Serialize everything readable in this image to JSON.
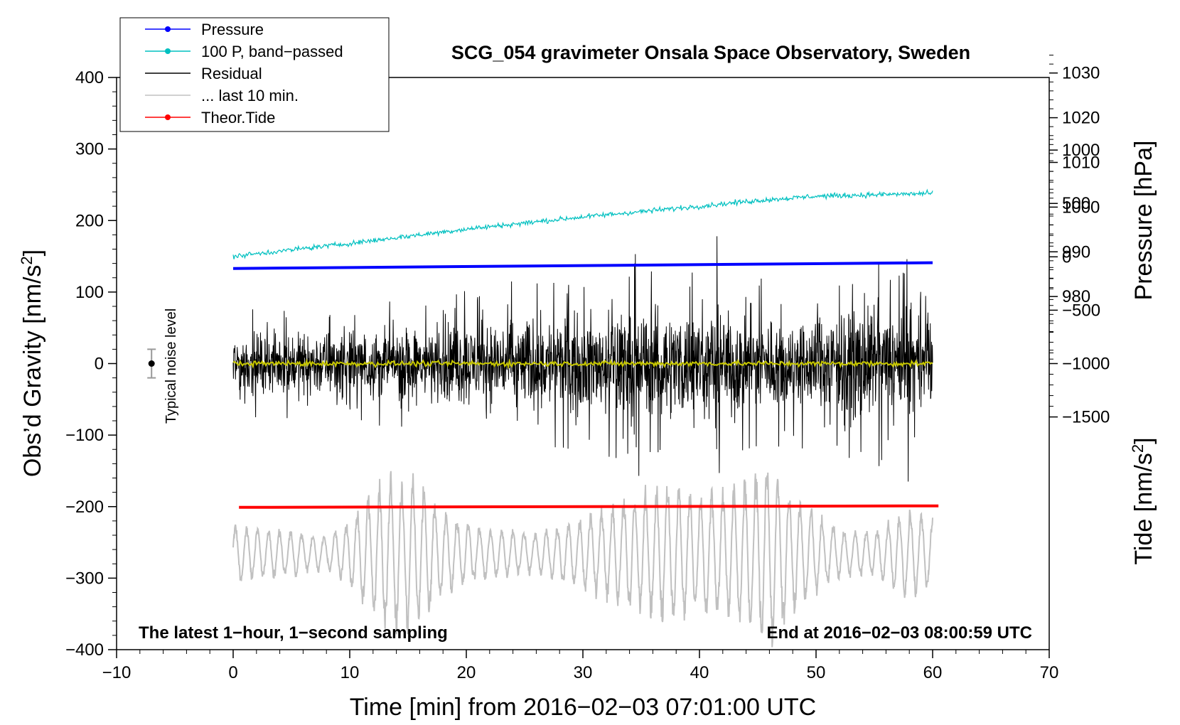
{
  "chart_data": {
    "type": "line",
    "title": "SCG_054 gravimeter Onsala Space Observatory, Sweden",
    "xlabel": "Time [min] from 2016−02−03 07:01:00 UTC",
    "ylabel_left_prefix": "Obs’d Gravity [nm/s",
    "ylabel_left_sup": "2",
    "ylabel_left_suffix": "]",
    "ylabel_right_pressure": "Pressure [hPa]",
    "ylabel_right_tide_prefix": "Tide [nm/s",
    "ylabel_right_tide_sup": "2",
    "ylabel_right_tide_suffix": "]",
    "xlim": [
      -10,
      70
    ],
    "ylim": [
      -400,
      400
    ],
    "x_ticks": [
      -10,
      0,
      10,
      20,
      30,
      40,
      50,
      60,
      70
    ],
    "x_tick_labels": [
      "−10",
      "0",
      "10",
      "20",
      "30",
      "40",
      "50",
      "60",
      "70"
    ],
    "y_ticks": [
      -400,
      -300,
      -200,
      -100,
      0,
      100,
      200,
      300,
      400
    ],
    "y_tick_labels": [
      "−400",
      "−300",
      "−200",
      "−100",
      "0",
      "100",
      "200",
      "300",
      "400"
    ],
    "pressure_axis": {
      "ticks": [
        980,
        990,
        1000,
        1010,
        1020,
        1030
      ],
      "tick_labels": [
        "980",
        "990",
        "1000",
        "1010",
        "1020",
        "1030"
      ],
      "value_at_y_zero": 965,
      "hpa_per_gravity_unit": 0.16
    },
    "tide_axis": {
      "ticks": [
        -1500,
        -1000,
        -500,
        0,
        500,
        1000
      ],
      "tick_labels": [
        "−1500",
        "−1000",
        "−500",
        "0",
        "500",
        "1000"
      ],
      "value_at_y_zero": -1000,
      "nm_per_gravity_unit": 6.7
    },
    "legend": [
      {
        "label": "Pressure",
        "color": "#0000ff",
        "marker": true
      },
      {
        "label": "100 P, band−passed",
        "color": "#00c0c0",
        "marker": true
      },
      {
        "label": "Residual",
        "color": "#000000",
        "marker": false
      },
      {
        "label": "... last 10 min.",
        "color": "#c0c0c0",
        "marker": false
      },
      {
        "label": "Theor.Tide",
        "color": "#ff0000",
        "marker": true
      }
    ],
    "annotations": {
      "bottom_left": "The latest 1−hour, 1−second sampling",
      "bottom_right": "End at 2016−02−03 08:00:59 UTC",
      "noise_label": "Typical noise level"
    },
    "noise_bar": {
      "x": -7,
      "center": 0,
      "half_range": 20
    },
    "series": [
      {
        "name": "Pressure",
        "color": "#0000ff",
        "kind": "linear",
        "x_range": [
          0,
          60
        ],
        "y_start": 133,
        "y_end": 141
      },
      {
        "name": "100 P, band−passed",
        "color": "#00c0c0",
        "kind": "trend_noise",
        "x": [
          0,
          10,
          20,
          30,
          40,
          45,
          50,
          55,
          60
        ],
        "y": [
          150,
          168,
          188,
          205,
          220,
          228,
          234,
          236,
          238
        ],
        "noise_amplitude": 6
      },
      {
        "name": "Residual",
        "color": "#000000",
        "kind": "noise",
        "x_range": [
          0,
          60
        ],
        "center": 0,
        "envelope_x": [
          0,
          5,
          10,
          15,
          20,
          25,
          30,
          35,
          40,
          45,
          50,
          55,
          60
        ],
        "envelope_amp": [
          55,
          65,
          70,
          70,
          85,
          95,
          95,
          110,
          110,
          95,
          95,
          115,
          85
        ],
        "peaks": [
          [
            34.5,
            153
          ],
          [
            34.8,
            -157
          ],
          [
            41.5,
            178
          ],
          [
            41.7,
            -153
          ],
          [
            57.8,
            146
          ],
          [
            57.9,
            -165
          ]
        ]
      },
      {
        "name": "Residual (smoothed)",
        "color": "#c8c800",
        "kind": "noise",
        "x_range": [
          0,
          60
        ],
        "center": 0,
        "amplitude": 3
      },
      {
        "name": "Theor.Tide",
        "color": "#ff0000",
        "kind": "linear",
        "x_range": [
          0.5,
          60.5
        ],
        "y_start": -201,
        "y_end": -199
      },
      {
        "name": "... last 10 min.",
        "color": "#c0c0c0",
        "kind": "oscillation",
        "x_range": [
          0,
          60
        ],
        "center": -265,
        "envelope_x": [
          0,
          5,
          8,
          10,
          13,
          16,
          18,
          22,
          26,
          30,
          34,
          37,
          40,
          43,
          46,
          49,
          52,
          55,
          58,
          60
        ],
        "envelope_amp": [
          35,
          28,
          20,
          40,
          95,
          90,
          50,
          30,
          25,
          45,
          70,
          85,
          70,
          80,
          110,
          60,
          30,
          28,
          55,
          40
        ],
        "period_min": 0.95
      }
    ]
  }
}
